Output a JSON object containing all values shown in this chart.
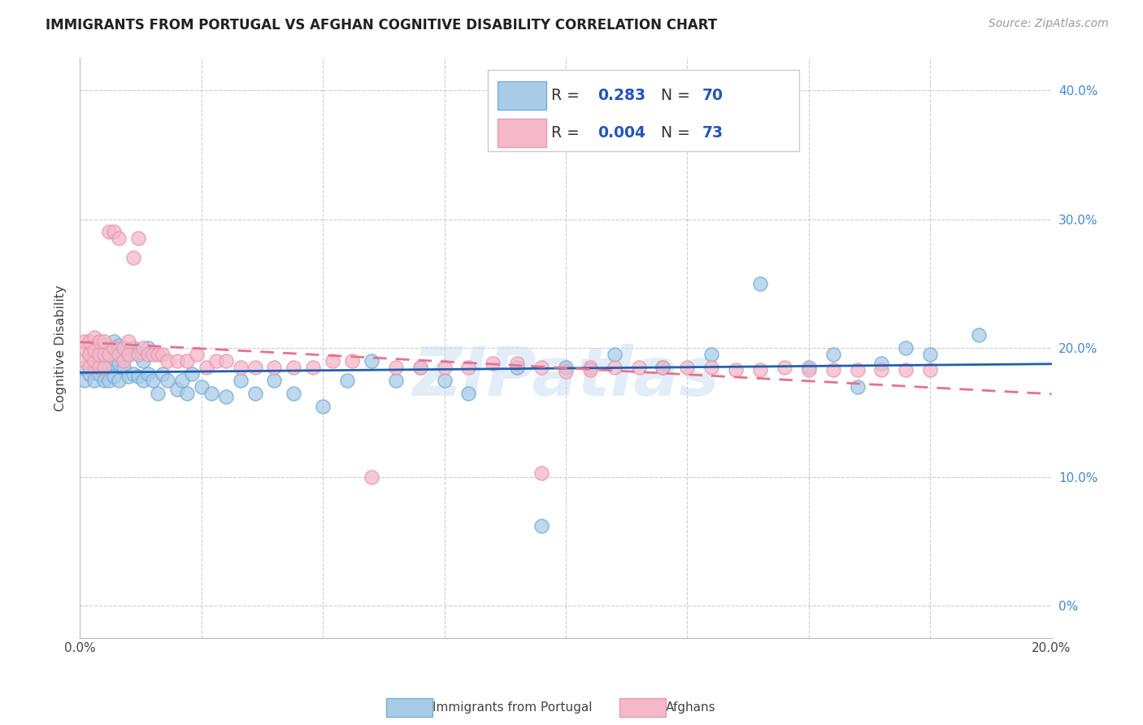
{
  "title": "IMMIGRANTS FROM PORTUGAL VS AFGHAN COGNITIVE DISABILITY CORRELATION CHART",
  "source": "Source: ZipAtlas.com",
  "ylabel": "Cognitive Disability",
  "blue_face": "#a8cce8",
  "blue_edge": "#7aaed4",
  "pink_face": "#f5b8c8",
  "pink_edge": "#e899b0",
  "blue_line": "#2060b0",
  "pink_line": "#e87090",
  "right_tick_color": "#4488cc",
  "text_color": "#444444",
  "title_color": "#222222",
  "source_color": "#999999",
  "grid_color": "#cccccc",
  "axis_color": "#bbbbbb",
  "watermark_color": "#c8ddf0",
  "xlim": [
    0.0,
    0.2
  ],
  "ylim": [
    -0.025,
    0.425
  ],
  "yticks": [
    0.0,
    0.1,
    0.2,
    0.3,
    0.4
  ],
  "ytick_labels": [
    "0%",
    "10.0%",
    "20.0%",
    "30.0%",
    "40.0%"
  ],
  "xticks": [
    0.0,
    0.025,
    0.05,
    0.075,
    0.1,
    0.125,
    0.15,
    0.175,
    0.2
  ],
  "legend_r_color": "#000000",
  "legend_val_color": "#2255bb",
  "bottom_labels": [
    "Immigrants from Portugal",
    "Afghans"
  ],
  "portugal_x": [
    0.001,
    0.001,
    0.002,
    0.002,
    0.003,
    0.003,
    0.003,
    0.004,
    0.004,
    0.004,
    0.005,
    0.005,
    0.005,
    0.006,
    0.006,
    0.006,
    0.007,
    0.007,
    0.007,
    0.008,
    0.008,
    0.008,
    0.009,
    0.009,
    0.01,
    0.01,
    0.011,
    0.011,
    0.012,
    0.012,
    0.013,
    0.013,
    0.014,
    0.014,
    0.015,
    0.016,
    0.017,
    0.018,
    0.02,
    0.021,
    0.022,
    0.023,
    0.025,
    0.027,
    0.03,
    0.033,
    0.036,
    0.04,
    0.044,
    0.05,
    0.055,
    0.06,
    0.065,
    0.07,
    0.075,
    0.08,
    0.09,
    0.095,
    0.1,
    0.11,
    0.12,
    0.13,
    0.14,
    0.15,
    0.155,
    0.16,
    0.165,
    0.17,
    0.175,
    0.185
  ],
  "portugal_y": [
    0.175,
    0.185,
    0.18,
    0.195,
    0.175,
    0.185,
    0.195,
    0.18,
    0.195,
    0.205,
    0.175,
    0.185,
    0.2,
    0.175,
    0.188,
    0.198,
    0.178,
    0.192,
    0.205,
    0.175,
    0.188,
    0.202,
    0.185,
    0.2,
    0.178,
    0.195,
    0.18,
    0.2,
    0.178,
    0.195,
    0.175,
    0.19,
    0.18,
    0.2,
    0.175,
    0.165,
    0.18,
    0.175,
    0.168,
    0.175,
    0.165,
    0.18,
    0.17,
    0.165,
    0.162,
    0.175,
    0.165,
    0.175,
    0.165,
    0.155,
    0.175,
    0.19,
    0.175,
    0.185,
    0.175,
    0.165,
    0.185,
    0.062,
    0.185,
    0.195,
    0.185,
    0.195,
    0.25,
    0.185,
    0.195,
    0.17,
    0.188,
    0.2,
    0.195,
    0.21
  ],
  "afghan_x": [
    0.001,
    0.001,
    0.001,
    0.002,
    0.002,
    0.002,
    0.003,
    0.003,
    0.003,
    0.004,
    0.004,
    0.004,
    0.005,
    0.005,
    0.005,
    0.006,
    0.006,
    0.007,
    0.007,
    0.008,
    0.008,
    0.009,
    0.009,
    0.01,
    0.01,
    0.011,
    0.012,
    0.012,
    0.013,
    0.014,
    0.015,
    0.016,
    0.017,
    0.018,
    0.02,
    0.022,
    0.024,
    0.026,
    0.028,
    0.03,
    0.033,
    0.036,
    0.04,
    0.044,
    0.048,
    0.052,
    0.056,
    0.06,
    0.065,
    0.07,
    0.075,
    0.08,
    0.085,
    0.09,
    0.095,
    0.1,
    0.105,
    0.11,
    0.115,
    0.12,
    0.125,
    0.13,
    0.135,
    0.14,
    0.145,
    0.15,
    0.155,
    0.16,
    0.165,
    0.17,
    0.175,
    0.095,
    0.105
  ],
  "afghan_y": [
    0.19,
    0.2,
    0.205,
    0.185,
    0.195,
    0.205,
    0.19,
    0.198,
    0.208,
    0.185,
    0.195,
    0.205,
    0.185,
    0.195,
    0.205,
    0.29,
    0.195,
    0.2,
    0.29,
    0.285,
    0.195,
    0.2,
    0.19,
    0.195,
    0.205,
    0.27,
    0.285,
    0.195,
    0.2,
    0.195,
    0.195,
    0.195,
    0.195,
    0.19,
    0.19,
    0.19,
    0.195,
    0.185,
    0.19,
    0.19,
    0.185,
    0.185,
    0.185,
    0.185,
    0.185,
    0.19,
    0.19,
    0.1,
    0.185,
    0.185,
    0.185,
    0.185,
    0.188,
    0.188,
    0.185,
    0.182,
    0.185,
    0.185,
    0.185,
    0.185,
    0.185,
    0.185,
    0.183,
    0.183,
    0.185,
    0.183,
    0.183,
    0.183,
    0.183,
    0.183,
    0.183,
    0.103,
    0.183
  ]
}
